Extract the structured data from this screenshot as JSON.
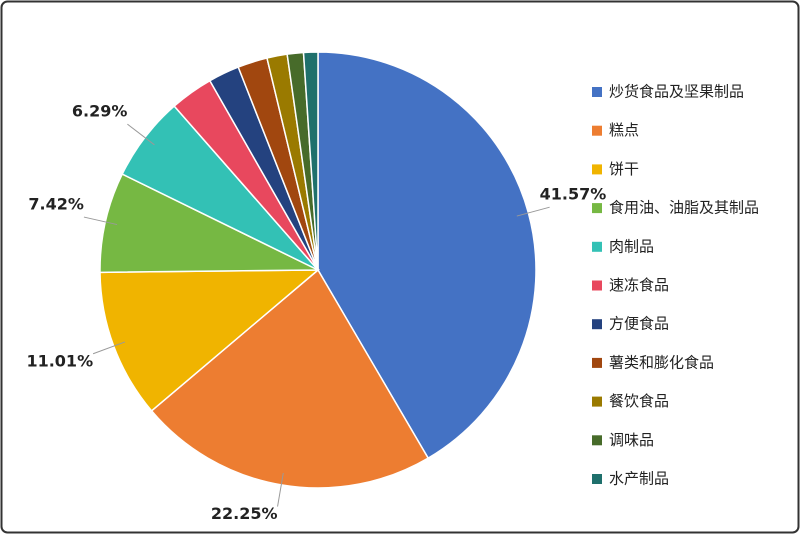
{
  "chart_data": {
    "type": "pie",
    "categories": [
      "炒货食品及坚果制品",
      "糕点",
      "饼干",
      "食用油、油脂及其制品",
      "肉制品",
      "速冻食品",
      "方便食品",
      "薯类和膨化食品",
      "餐饮食品",
      "调味品",
      "水产制品"
    ],
    "values": [
      41.57,
      22.25,
      11.01,
      7.42,
      6.29,
      3.2,
      2.3,
      2.2,
      1.5,
      1.2,
      1.06
    ],
    "value_labels": [
      "41.57%",
      "22.25%",
      "11.01%",
      "7.42%",
      "6.29%",
      null,
      null,
      null,
      null,
      null,
      null
    ],
    "colors": [
      "#4472c4",
      "#ed7d31",
      "#f0b400",
      "#76b843",
      "#33c1b5",
      "#e8485e",
      "#24427f",
      "#a1470f",
      "#9a7a00",
      "#476b2a",
      "#1f706c"
    ],
    "legend": "right"
  }
}
